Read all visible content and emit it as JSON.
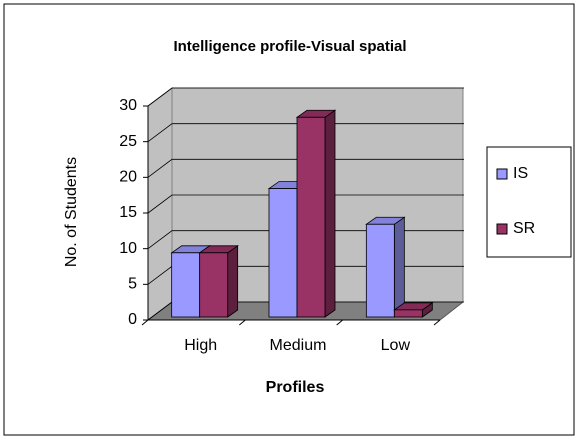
{
  "chart_data": {
    "type": "bar",
    "title": "Intelligence profile-Visual spatial",
    "x_label": "Profiles",
    "y_label": "No. of Students",
    "categories": [
      "High",
      "Medium",
      "Low"
    ],
    "series": [
      {
        "name": "IS",
        "color": "#9999ff",
        "values": [
          9,
          18,
          13
        ]
      },
      {
        "name": "SR",
        "color": "#993366",
        "values": [
          9,
          28,
          1
        ]
      }
    ],
    "ylim": [
      0,
      30
    ],
    "yticks": [
      0,
      5,
      10,
      15,
      20,
      25,
      30
    ],
    "grid": true,
    "legend": "right"
  }
}
